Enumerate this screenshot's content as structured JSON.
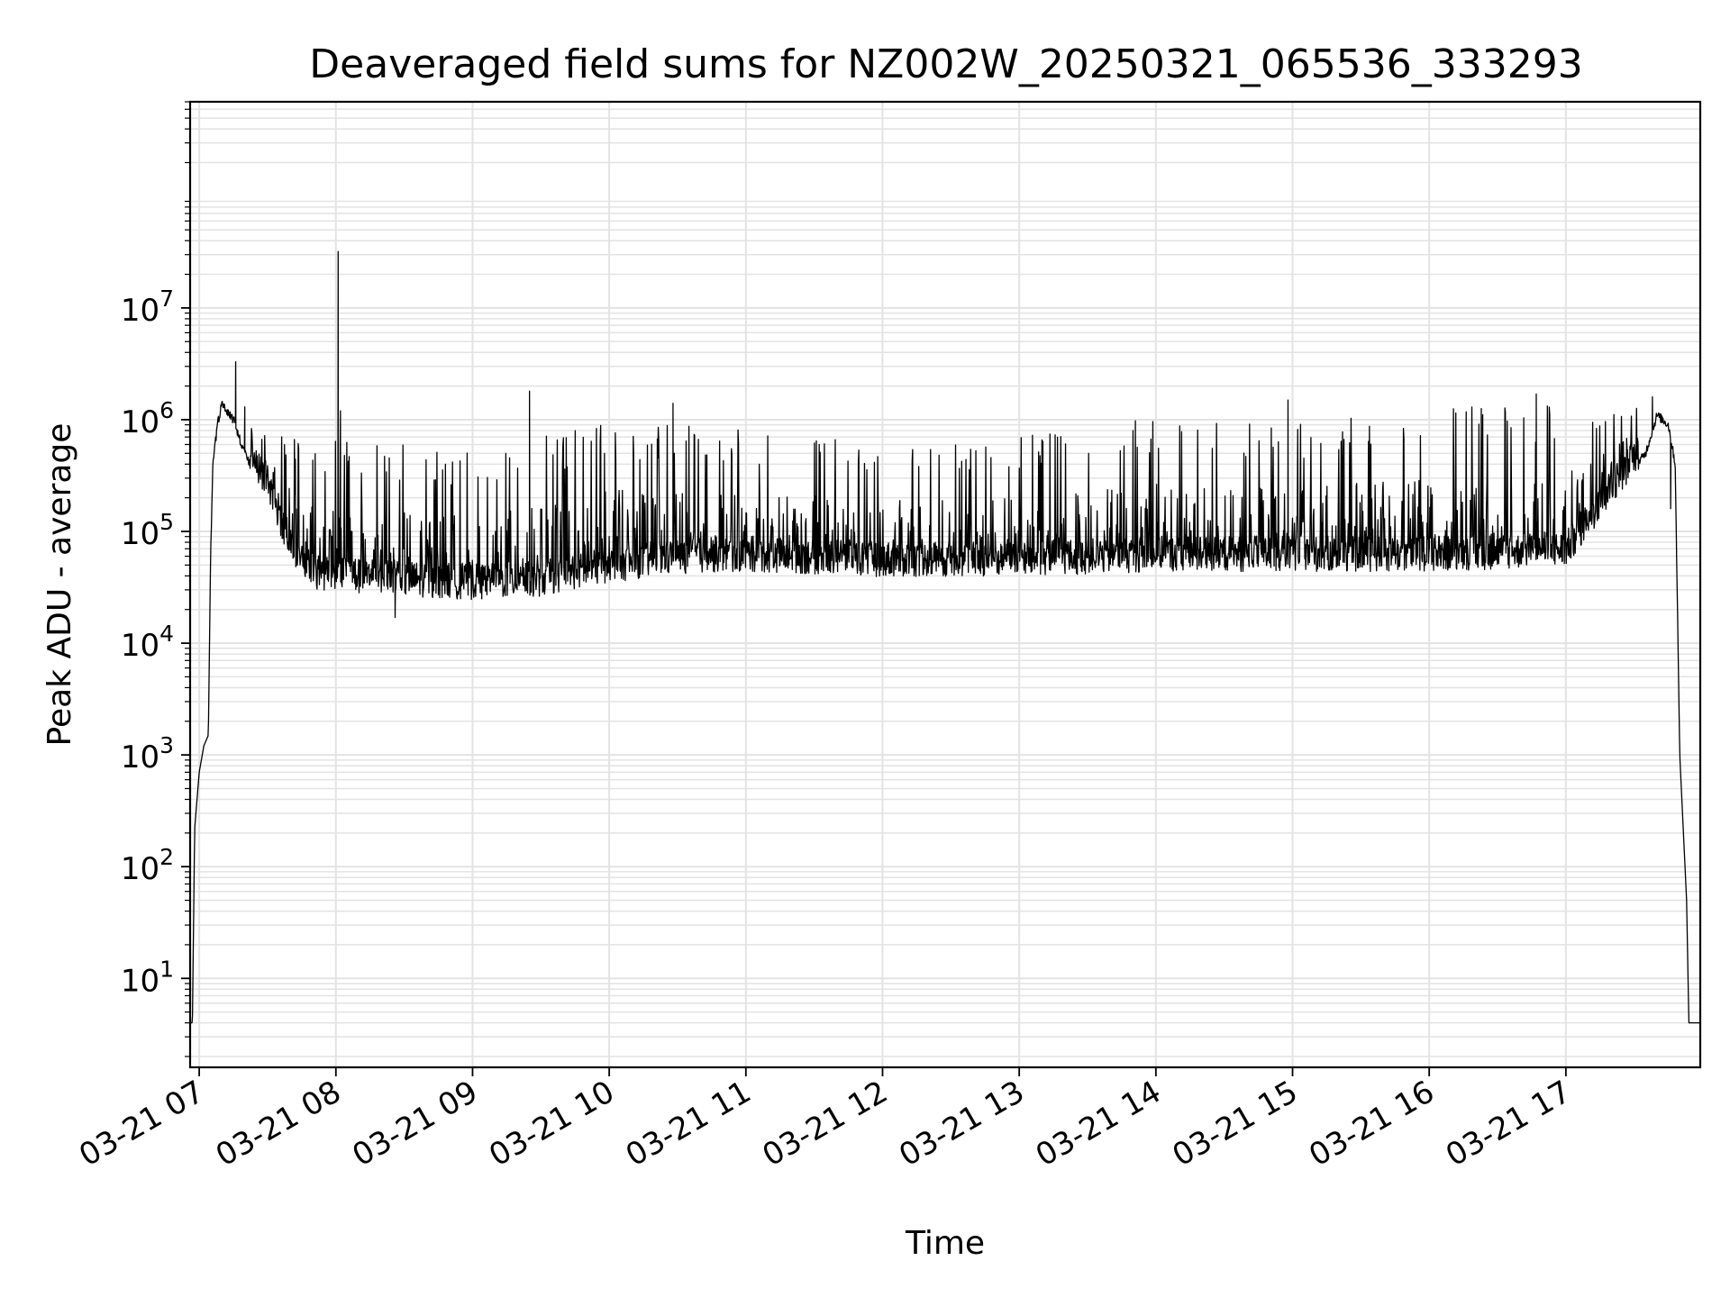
{
  "chart_data": {
    "type": "line",
    "title": "Deaveraged field sums for NZ002W_20250321_065536_333293",
    "xlabel": "Time",
    "ylabel": "Peak ADU - average",
    "yscale": "log",
    "ylim": [
      1.6,
      700000000
    ],
    "xlim": [
      "2025-03-21 06:56",
      "2025-03-21 17:59"
    ],
    "grid": "on (major and minor)",
    "line_color": "#000000",
    "grid_color": "#e3e3e3",
    "x_ticks": [
      {
        "time": "2025-03-21 07:00",
        "label": "03-21 07"
      },
      {
        "time": "2025-03-21 08:00",
        "label": "03-21 08"
      },
      {
        "time": "2025-03-21 09:00",
        "label": "03-21 09"
      },
      {
        "time": "2025-03-21 10:00",
        "label": "03-21 10"
      },
      {
        "time": "2025-03-21 11:00",
        "label": "03-21 11"
      },
      {
        "time": "2025-03-21 12:00",
        "label": "03-21 12"
      },
      {
        "time": "2025-03-21 13:00",
        "label": "03-21 13"
      },
      {
        "time": "2025-03-21 14:00",
        "label": "03-21 14"
      },
      {
        "time": "2025-03-21 15:00",
        "label": "03-21 15"
      },
      {
        "time": "2025-03-21 16:00",
        "label": "03-21 16"
      },
      {
        "time": "2025-03-21 17:00",
        "label": "03-21 17"
      }
    ],
    "y_ticks": [
      {
        "value": 10,
        "base": "10",
        "exp": "1"
      },
      {
        "value": 100,
        "base": "10",
        "exp": "2"
      },
      {
        "value": 1000,
        "base": "10",
        "exp": "3"
      },
      {
        "value": 10000,
        "base": "10",
        "exp": "4"
      },
      {
        "value": 100000,
        "base": "10",
        "exp": "5"
      },
      {
        "value": 1000000,
        "base": "10",
        "exp": "6"
      },
      {
        "value": 10000000,
        "base": "10",
        "exp": "7"
      }
    ],
    "envelope": {
      "baseline": [
        [
          "2025-03-21 06:56",
          4
        ],
        [
          "2025-03-21 06:57",
          4
        ],
        [
          "2025-03-21 06:58",
          220
        ],
        [
          "2025-03-21 07:00",
          700
        ],
        [
          "2025-03-21 07:02",
          1200
        ],
        [
          "2025-03-21 07:04",
          1500
        ],
        [
          "2025-03-21 07:05",
          60000
        ],
        [
          "2025-03-21 07:06",
          400000
        ],
        [
          "2025-03-21 07:08",
          900000
        ],
        [
          "2025-03-21 07:10",
          1400000
        ],
        [
          "2025-03-21 07:15",
          1000000
        ],
        [
          "2025-03-21 07:20",
          500000
        ],
        [
          "2025-03-21 07:30",
          220000
        ],
        [
          "2025-03-21 07:40",
          60000
        ],
        [
          "2025-03-21 07:50",
          35000
        ],
        [
          "2025-03-21 08:00",
          32000
        ],
        [
          "2025-03-21 08:30",
          30000
        ],
        [
          "2025-03-21 09:00",
          28000
        ],
        [
          "2025-03-21 09:30",
          30000
        ],
        [
          "2025-03-21 10:00",
          40000
        ],
        [
          "2025-03-21 10:30",
          48000
        ],
        [
          "2025-03-21 11:00",
          50000
        ],
        [
          "2025-03-21 12:00",
          45000
        ],
        [
          "2025-03-21 13:00",
          45000
        ],
        [
          "2025-03-21 14:00",
          50000
        ],
        [
          "2025-03-21 15:00",
          50000
        ],
        [
          "2025-03-21 16:00",
          50000
        ],
        [
          "2025-03-21 17:00",
          55000
        ],
        [
          "2025-03-21 17:20",
          200000
        ],
        [
          "2025-03-21 17:35",
          500000
        ],
        [
          "2025-03-21 17:40",
          1100000
        ],
        [
          "2025-03-21 17:45",
          900000
        ],
        [
          "2025-03-21 17:48",
          400000
        ],
        [
          "2025-03-21 17:50",
          1000
        ],
        [
          "2025-03-21 17:53",
          50
        ],
        [
          "2025-03-21 17:54",
          4
        ],
        [
          "2025-03-21 17:59",
          4
        ]
      ],
      "spike_ceiling": [
        [
          "2025-03-21 07:10",
          900000
        ],
        [
          "2025-03-21 08:00",
          700000
        ],
        [
          "2025-03-21 09:00",
          500000
        ],
        [
          "2025-03-21 10:00",
          1000000
        ],
        [
          "2025-03-21 11:00",
          800000
        ],
        [
          "2025-03-21 12:00",
          600000
        ],
        [
          "2025-03-21 13:00",
          700000
        ],
        [
          "2025-03-21 14:00",
          1100000
        ],
        [
          "2025-03-21 15:00",
          900000
        ],
        [
          "2025-03-21 16:00",
          1300000
        ],
        [
          "2025-03-21 17:30",
          1500000
        ]
      ],
      "peaks": [
        [
          "2025-03-21 07:16",
          3300000
        ],
        [
          "2025-03-21 07:20",
          1300000
        ],
        [
          "2025-03-21 08:01",
          32000000
        ],
        [
          "2025-03-21 08:02",
          1200000
        ],
        [
          "2025-03-21 08:26",
          17000
        ],
        [
          "2025-03-21 09:25",
          1800000
        ],
        [
          "2025-03-21 10:28",
          1400000
        ],
        [
          "2025-03-21 14:58",
          1500000
        ],
        [
          "2025-03-21 16:47",
          1700000
        ],
        [
          "2025-03-21 17:38",
          1600000
        ],
        [
          "2025-03-21 17:46",
          160000
        ]
      ]
    }
  }
}
